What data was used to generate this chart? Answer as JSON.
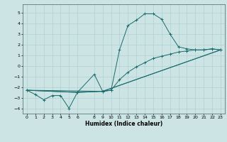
{
  "title": "",
  "xlabel": "Humidex (Indice chaleur)",
  "bg_color": "#cde4e5",
  "grid_color": "#b0d0d2",
  "line_color": "#1a6b6b",
  "xlim": [
    -0.5,
    23.5
  ],
  "ylim": [
    -4.5,
    5.8
  ],
  "yticks": [
    -4,
    -3,
    -2,
    -1,
    0,
    1,
    2,
    3,
    4,
    5
  ],
  "xticks": [
    0,
    1,
    2,
    3,
    4,
    5,
    6,
    8,
    9,
    10,
    11,
    12,
    13,
    14,
    15,
    16,
    17,
    18,
    19,
    20,
    21,
    22,
    23
  ],
  "line1_x": [
    0,
    1,
    2,
    3,
    4,
    5,
    6,
    8,
    9,
    10,
    11,
    12,
    13,
    14,
    15,
    16,
    17,
    18,
    19,
    20,
    21,
    22,
    23
  ],
  "line1_y": [
    -2.3,
    -2.7,
    -3.2,
    -2.8,
    -2.8,
    -4.0,
    -2.5,
    -0.8,
    -2.4,
    -2.3,
    1.5,
    3.8,
    4.3,
    4.9,
    4.9,
    4.4,
    3.0,
    1.8,
    1.6,
    1.5,
    1.5,
    1.6,
    1.5
  ],
  "line2_x": [
    0,
    6,
    9,
    10,
    11,
    12,
    13,
    14,
    15,
    16,
    17,
    18,
    19,
    20,
    21,
    22,
    23
  ],
  "line2_y": [
    -2.3,
    -2.5,
    -2.4,
    -2.3,
    -1.3,
    -0.6,
    -0.1,
    0.3,
    0.7,
    0.9,
    1.1,
    1.3,
    1.4,
    1.5,
    1.5,
    1.6,
    1.5
  ],
  "line3_x": [
    0,
    6,
    9,
    23
  ],
  "line3_y": [
    -2.3,
    -2.5,
    -2.4,
    1.5
  ],
  "line4_x": [
    0,
    9,
    23
  ],
  "line4_y": [
    -2.3,
    -2.4,
    1.5
  ]
}
